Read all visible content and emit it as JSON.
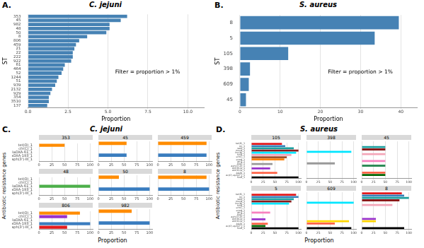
{
  "chart_data": [
    {
      "label": "A.",
      "title": "C. jejuni",
      "type": "bar",
      "orientation": "horizontal",
      "x_label": "Proportion",
      "y_label": "ST",
      "annotations": [
        "Filter = proportion > 1%"
      ],
      "categories": [
        "353",
        "45",
        "982",
        "48",
        "50",
        "8",
        "806",
        "459",
        "21",
        "22",
        "222",
        "922",
        "61",
        "464",
        "52",
        "1244",
        "51",
        "939",
        "2132",
        "929",
        "354",
        "3510",
        "137"
      ],
      "values": [
        6.2,
        5.8,
        5.1,
        5.1,
        4.9,
        3.7,
        3.2,
        3.0,
        2.9,
        2.8,
        2.8,
        2.7,
        2.3,
        2.2,
        2.1,
        1.9,
        1.8,
        1.7,
        1.5,
        1.4,
        1.3,
        1.3,
        1.2
      ],
      "color": "#4682b4",
      "xlim": [
        0,
        11
      ],
      "xticks": [
        {
          "value": 0,
          "label": "0.0"
        },
        2.5,
        {
          "value": 5,
          "label": "5.0"
        },
        7.5,
        {
          "value": 10,
          "label": "10.0"
        }
      ],
      "grid": true
    },
    {
      "label": "B.",
      "title": "S. aureus",
      "type": "bar",
      "orientation": "horizontal",
      "x_label": "Proportion",
      "y_label": "ST",
      "annotations": [
        "Filter = proportion > 1%"
      ],
      "categories": [
        "8",
        "5",
        "105",
        "398",
        "609",
        "45"
      ],
      "values": [
        39.5,
        33.5,
        12,
        2.5,
        2.2,
        1.5
      ],
      "color": "#4682b4",
      "xlim": [
        0,
        44
      ],
      "xticks": [
        0,
        10,
        20,
        30,
        40
      ],
      "grid": true
    },
    {
      "label": "C.",
      "title": "C. jejuni",
      "type": "bar",
      "orientation": "horizontal",
      "x_label": "Proportion",
      "y_label": "Antibiotic resistance genes",
      "categories": [
        "tet(O)_1",
        "cfr(C)_1",
        "blaOXA-61_1",
        "blaOXA-193_1",
        "aph(3')-III_1"
      ],
      "colors": [
        "#ff8c00",
        "#9932cc",
        "#4daf4a",
        "#3a7dbf",
        "#e41a1c"
      ],
      "xlim": [
        0,
        105
      ],
      "xticks": [
        0,
        25,
        50,
        75,
        100
      ],
      "grid": true,
      "facets": [
        {
          "title": "353",
          "values": [
            50,
            null,
            null,
            null,
            null
          ]
        },
        {
          "title": "45",
          "values": [
            55,
            null,
            null,
            55,
            null
          ]
        },
        {
          "title": "459",
          "values": [
            95,
            null,
            null,
            95,
            null
          ]
        },
        {
          "title": "48",
          "values": [
            null,
            null,
            100,
            null,
            null
          ]
        },
        {
          "title": "50",
          "values": [
            40,
            null,
            null,
            100,
            null
          ]
        },
        {
          "title": "8",
          "values": [
            95,
            null,
            null,
            100,
            null
          ]
        },
        {
          "title": "806",
          "values": [
            80,
            55,
            null,
            100,
            55
          ]
        },
        {
          "title": "982",
          "values": [
            65,
            null,
            null,
            100,
            null
          ]
        }
      ]
    },
    {
      "label": "D.",
      "title": "S. aureus",
      "type": "bar",
      "orientation": "horizontal",
      "x_label": "Proportion",
      "y_label": "Antibiotic resistance genes",
      "categories": [
        "tet(K)_1",
        "str_1",
        "sat4_1",
        "mecA_1",
        "lnu(A)_1",
        "fosB_1",
        "ermC_1",
        "ermA_1",
        "dfrG_1",
        "blaZ_1",
        "aph(3')-III_1",
        "ant(9)-Ia_1",
        "ant(6)-Ia_1",
        "aadD_1",
        "aac(6')-aph(2'')_1",
        "fusB_1"
      ],
      "colors": [
        "#e41a1c",
        "#377eb8",
        "#1b9e9e",
        "#8b1a1a",
        "#00e5ff",
        "#f4a6b8",
        "#a0522d",
        "#ff7f00",
        "#f781bf",
        "#999999",
        "#2e8b57",
        "#9932cc",
        "#ffd700",
        "#ff6347",
        "#006400",
        "#000000"
      ],
      "xlim": [
        0,
        105
      ],
      "xticks": [
        0,
        25,
        50,
        75,
        100
      ],
      "grid": true,
      "facets": [
        {
          "title": "105",
          "values": [
            65,
            72,
            90,
            100,
            95,
            85,
            75,
            70,
            null,
            45,
            null,
            40,
            null,
            55,
            null,
            100
          ]
        },
        {
          "title": "398",
          "values": [
            null,
            null,
            null,
            null,
            95,
            null,
            null,
            null,
            null,
            60,
            null,
            null,
            null,
            null,
            null,
            null
          ]
        },
        {
          "title": "45",
          "values": [
            null,
            null,
            50,
            50,
            null,
            50,
            null,
            null,
            50,
            null,
            50,
            null,
            null,
            50,
            50,
            null
          ]
        },
        {
          "title": "5",
          "values": [
            95,
            100,
            90,
            85,
            80,
            null,
            null,
            null,
            40,
            null,
            null,
            30,
            null,
            35,
            30,
            100
          ]
        },
        {
          "title": "609",
          "values": [
            null,
            null,
            null,
            null,
            100,
            null,
            null,
            null,
            null,
            null,
            null,
            null,
            90,
            60,
            null,
            95
          ]
        },
        {
          "title": "8",
          "values": [
            85,
            90,
            100,
            80,
            null,
            65,
            null,
            null,
            null,
            null,
            null,
            30,
            30,
            null,
            null,
            90
          ]
        }
      ]
    }
  ]
}
